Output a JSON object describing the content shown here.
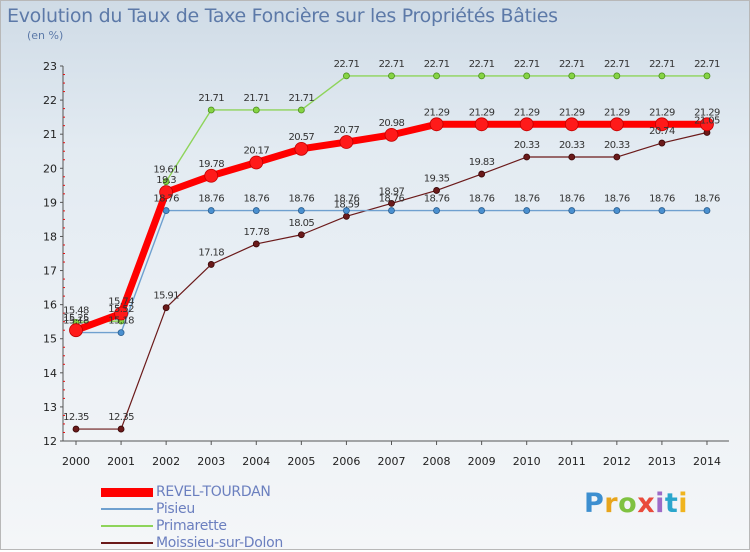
{
  "chart_data": {
    "type": "line",
    "title": "Evolution du Taux de Taxe Foncière sur les Propriétés Bâties",
    "subtitle": "(en %)",
    "x": [
      "2000",
      "2001",
      "2002",
      "2003",
      "2004",
      "2005",
      "2006",
      "2007",
      "2008",
      "2009",
      "2010",
      "2011",
      "2012",
      "2013",
      "2014"
    ],
    "ylim": [
      12,
      23
    ],
    "yticks": [
      "12",
      "13",
      "14",
      "15",
      "16",
      "17",
      "18",
      "19",
      "20",
      "21",
      "22",
      "23"
    ],
    "series": [
      {
        "name": "REVEL-TOURDAN",
        "color": "#ff0000",
        "values": [
          15.25,
          15.74,
          19.3,
          19.78,
          20.17,
          20.57,
          20.77,
          20.98,
          21.29,
          21.29,
          21.29,
          21.29,
          21.29,
          21.29,
          21.29
        ],
        "labels": [
          "15.25",
          "15.74",
          "19.3",
          "19.78",
          "20.17",
          "20.57",
          "20.77",
          "20.98",
          "21.29",
          "21.29",
          "21.29",
          "21.29",
          "21.29",
          "21.29",
          "21.29"
        ]
      },
      {
        "name": "Pisieu",
        "color": "#6fa0cf",
        "values": [
          15.18,
          15.18,
          18.76,
          18.76,
          18.76,
          18.76,
          18.76,
          18.76,
          18.76,
          18.76,
          18.76,
          18.76,
          18.76,
          18.76,
          18.76
        ],
        "labels": [
          "15.18",
          "15.18",
          "18.76",
          "18.76",
          "18.76",
          "18.76",
          "18.76",
          "18.76",
          "18.76",
          "18.76",
          "18.76",
          "18.76",
          "18.76",
          "18.76",
          "18.76"
        ]
      },
      {
        "name": "Primarette",
        "color": "#8ed45a",
        "values": [
          15.48,
          15.52,
          19.61,
          21.71,
          21.71,
          21.71,
          22.71,
          22.71,
          22.71,
          22.71,
          22.71,
          22.71,
          22.71,
          22.71,
          22.71
        ],
        "labels": [
          "15.48",
          "15.52",
          "19.61",
          "21.71",
          "21.71",
          "21.71",
          "22.71",
          "22.71",
          "22.71",
          "22.71",
          "22.71",
          "22.71",
          "22.71",
          "22.71",
          "22.71"
        ]
      },
      {
        "name": "Moissieu-sur-Dolon",
        "color": "#6b1a1a",
        "values": [
          12.35,
          12.35,
          15.91,
          17.18,
          17.78,
          18.05,
          18.59,
          18.97,
          19.35,
          19.83,
          20.33,
          20.33,
          20.33,
          20.74,
          21.05
        ],
        "labels": [
          "12.35",
          "12.35",
          "15.91",
          "17.18",
          "17.78",
          "18.05",
          "18.59",
          "18.97",
          "19.35",
          "19.83",
          "20.33",
          "20.33",
          "20.33",
          "20.74",
          "21.05"
        ]
      }
    ],
    "legend": "bottom-left",
    "grid": false
  },
  "brand": {
    "letters": [
      "P",
      "r",
      "o",
      "x",
      "i",
      "t",
      "i"
    ],
    "colors": [
      "#3d8fd0",
      "#e8a51c",
      "#7fc241",
      "#e94b3c",
      "#9d6bc7",
      "#2aa6cc",
      "#f0b41e"
    ]
  }
}
